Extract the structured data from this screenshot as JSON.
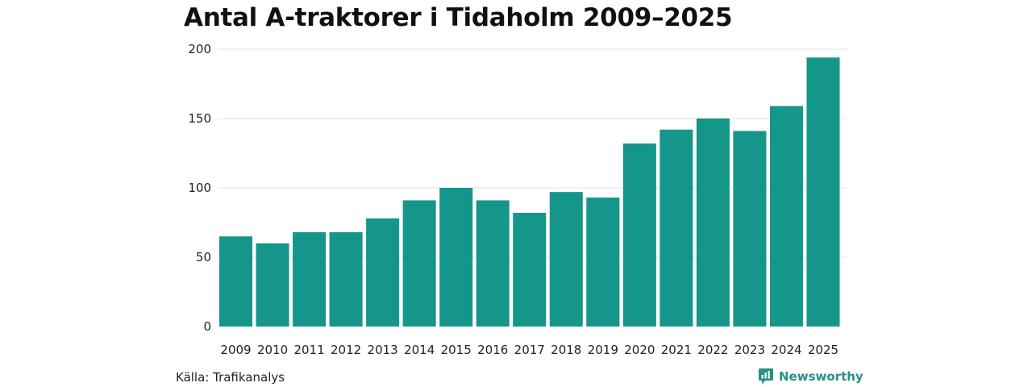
{
  "chart_data": {
    "type": "bar",
    "title": "Antal A-traktorer i Tidaholm 2009–2025",
    "xlabel": "",
    "ylabel": "",
    "categories": [
      "2009",
      "2010",
      "2011",
      "2012",
      "2013",
      "2014",
      "2015",
      "2016",
      "2017",
      "2018",
      "2019",
      "2020",
      "2021",
      "2022",
      "2023",
      "2024",
      "2025"
    ],
    "values": [
      65,
      60,
      68,
      68,
      78,
      91,
      100,
      91,
      82,
      97,
      93,
      132,
      142,
      150,
      141,
      159,
      194
    ],
    "ylim": [
      0,
      200
    ],
    "yticks": [
      0,
      50,
      100,
      150,
      200
    ],
    "grid": true,
    "bar_color": "#15968a"
  },
  "footer": {
    "source": "Källa: Trafikanalys",
    "brand": "Newsworthy"
  },
  "colors": {
    "grid": "#e2e2e2",
    "brand": "#2a8f86"
  }
}
